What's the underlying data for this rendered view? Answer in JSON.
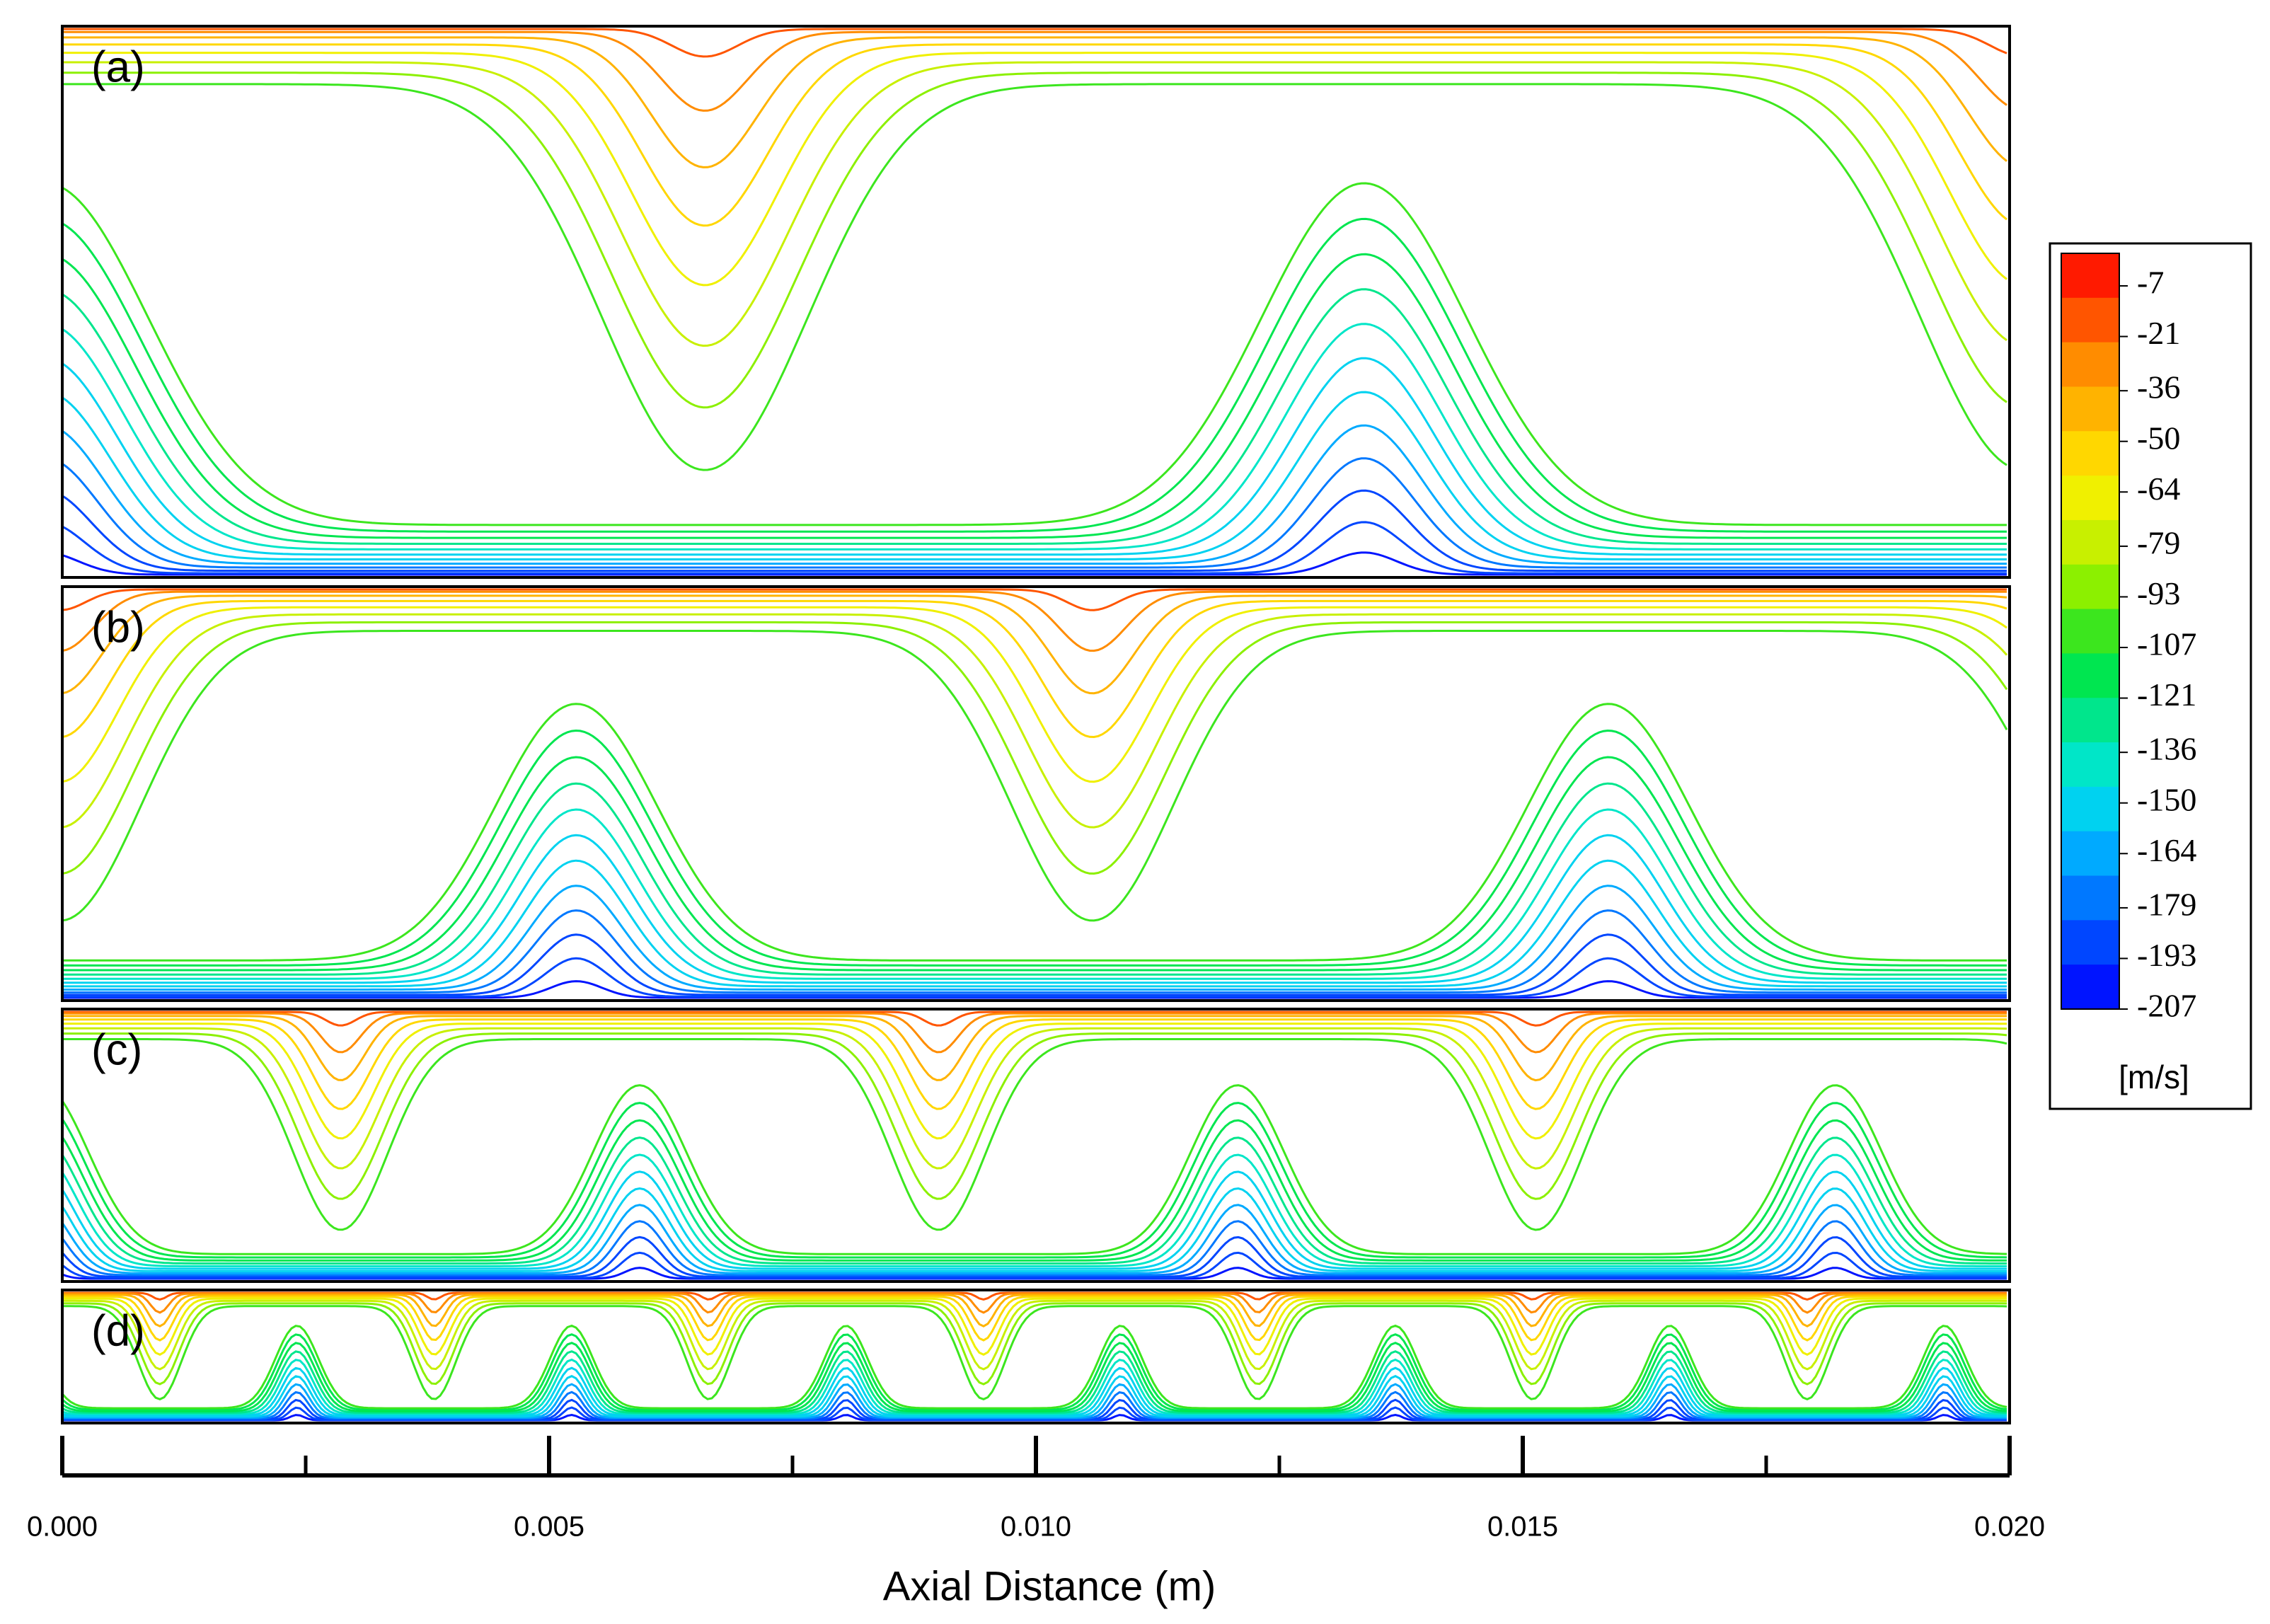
{
  "chart_data": {
    "type": "contour",
    "panels": [
      {
        "label": "(a)"
      },
      {
        "label": "(b)"
      },
      {
        "label": "(c)"
      },
      {
        "label": "(d)"
      }
    ],
    "xlabel": "Axial Distance (m)",
    "xlim": [
      0,
      0.02
    ],
    "xticks": [
      {
        "value": 0,
        "label": "0.000"
      },
      0.005,
      {
        "value": 0.01,
        "label": "0.010"
      },
      0.015,
      {
        "value": 0.02,
        "label": "0.020"
      }
    ],
    "xminor_ticks": [
      0.0025,
      0.0075,
      0.0125,
      0.0175
    ],
    "colorbar": {
      "lim": [
        -207,
        2
      ],
      "unit": "[m/s]",
      "ticks": [
        -7,
        -21,
        -36,
        -50,
        -64,
        -79,
        -93,
        -107,
        -121,
        -136,
        -150,
        -164,
        -179,
        -193,
        -207
      ],
      "colors": [
        "#ff1a00",
        "#ff5500",
        "#ff8c00",
        "#ffb300",
        "#ffd700",
        "#f0f000",
        "#c8f000",
        "#8cf000",
        "#3ce61e",
        "#00e650",
        "#00e68c",
        "#00e6c8",
        "#00d2f0",
        "#00aaff",
        "#0078ff",
        "#0046ff",
        "#0014ff"
      ]
    }
  }
}
